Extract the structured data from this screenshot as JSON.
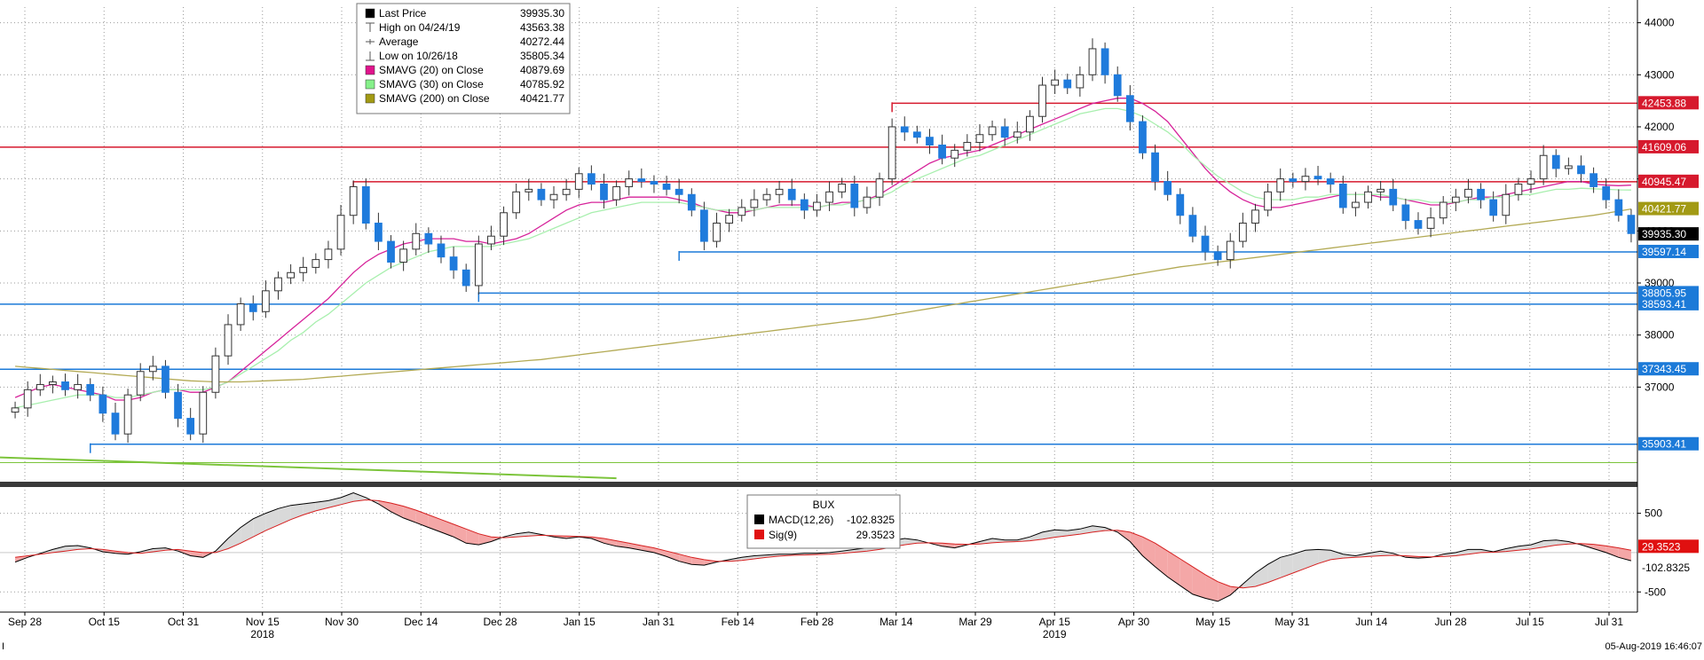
{
  "chart_data": [
    {
      "type": "candlestick",
      "panel": "price",
      "y_axis": {
        "ticks": [
          37000,
          38000,
          39000,
          40000,
          41000,
          42000,
          43000,
          44000
        ],
        "range": [
          35200,
          44300
        ],
        "side": "right"
      },
      "x_axis": {
        "ticks": [
          "Sep 28",
          "Oct 15",
          "Oct 31",
          "Nov 15",
          "Nov 30",
          "Dec 14",
          "Dec 28",
          "Jan 15",
          "Jan 31",
          "Feb 14",
          "Feb 28",
          "Mar 14",
          "Mar 29",
          "Apr 15",
          "Apr 30",
          "May 15",
          "May 31",
          "Jun 14",
          "Jun 28",
          "Jul 15",
          "Jul 31"
        ],
        "years": [
          {
            "label": "2018",
            "at": "Nov 15"
          },
          {
            "label": "2019",
            "at": "Apr 15"
          }
        ]
      },
      "grid": true,
      "legend": {
        "placement": "top-left",
        "entries": [
          {
            "label": "Last Price",
            "value": "39935.30",
            "color": "#000000",
            "marker": "square"
          },
          {
            "label": "High on 04/24/19",
            "value": "43563.38",
            "marker": "high"
          },
          {
            "label": "Average",
            "value": "40272.44",
            "marker": "avg"
          },
          {
            "label": "Low on 10/26/18",
            "value": "35805.34",
            "marker": "low"
          },
          {
            "label": "SMAVG (20)  on Close",
            "value": "40879.69",
            "color": "#e0148c",
            "marker": "square"
          },
          {
            "label": "SMAVG (30)  on Close",
            "value": "40785.92",
            "color": "#86f08a",
            "marker": "square"
          },
          {
            "label": "SMAVG (200)  on Close",
            "value": "40421.77",
            "color": "#a29a14",
            "marker": "square"
          }
        ]
      },
      "close_series": [
        36600,
        36950,
        37050,
        37100,
        36950,
        37050,
        36850,
        36500,
        36100,
        36850,
        37300,
        37400,
        36900,
        36400,
        36100,
        36900,
        37600,
        38200,
        38600,
        38450,
        38850,
        39100,
        39200,
        39300,
        39450,
        39650,
        40300,
        40850,
        40150,
        39800,
        39400,
        39650,
        39950,
        39750,
        39500,
        39250,
        38950,
        39750,
        39900,
        40350,
        40750,
        40800,
        40600,
        40700,
        40800,
        41100,
        40900,
        40600,
        40850,
        41000,
        40950,
        40900,
        40800,
        40700,
        40400,
        39800,
        40150,
        40300,
        40450,
        40600,
        40700,
        40800,
        40600,
        40400,
        40550,
        40750,
        40900,
        40450,
        40650,
        41000,
        42000,
        41900,
        41800,
        41650,
        41400,
        41550,
        41700,
        41850,
        42000,
        41800,
        41900,
        42200,
        42800,
        42900,
        42750,
        43000,
        43500,
        43000,
        42600,
        42100,
        41500,
        40950,
        40700,
        40300,
        39900,
        39600,
        39450,
        39800,
        40150,
        40400,
        40750,
        41000,
        40950,
        41050,
        41000,
        40900,
        40450,
        40550,
        40750,
        40800,
        40500,
        40200,
        40050,
        40250,
        40550,
        40650,
        40800,
        40600,
        40300,
        40700,
        40900,
        41000,
        41450,
        41200,
        41250,
        41100,
        40850,
        40600,
        40300,
        39950
      ],
      "moving_averages": [
        {
          "name": "SMAVG (20)",
          "color": "#d6239a",
          "values": [
            36800,
            36900,
            37000,
            37050,
            37000,
            36950,
            36900,
            36850,
            36750,
            36750,
            36800,
            36900,
            36950,
            36950,
            36900,
            36900,
            37000,
            37100,
            37300,
            37500,
            37700,
            37900,
            38100,
            38300,
            38500,
            38700,
            38950,
            39200,
            39400,
            39550,
            39650,
            39750,
            39800,
            39850,
            39850,
            39850,
            39800,
            39800,
            39750,
            39800,
            39850,
            39950,
            40100,
            40250,
            40400,
            40500,
            40550,
            40550,
            40600,
            40650,
            40650,
            40650,
            40650,
            40600,
            40550,
            40450,
            40400,
            40350,
            40350,
            40400,
            40450,
            40500,
            40500,
            40500,
            40450,
            40500,
            40550,
            40550,
            40600,
            40700,
            40850,
            41000,
            41150,
            41300,
            41400,
            41450,
            41500,
            41550,
            41650,
            41750,
            41850,
            41950,
            42050,
            42150,
            42250,
            42350,
            42450,
            42500,
            42550,
            42550,
            42450,
            42300,
            42100,
            41800,
            41500,
            41200,
            40950,
            40750,
            40600,
            40500,
            40450,
            40450,
            40500,
            40550,
            40600,
            40650,
            40700,
            40700,
            40700,
            40650,
            40650,
            40600,
            40550,
            40500,
            40500,
            40550,
            40600,
            40650,
            40650,
            40700,
            40750,
            40800,
            40850,
            40900,
            40950,
            40950,
            40900,
            40880,
            40870,
            40880
          ]
        },
        {
          "name": "SMAVG (30)",
          "color": "#a8efae",
          "values": [
            36600,
            36650,
            36700,
            36750,
            36800,
            36850,
            36850,
            36850,
            36800,
            36800,
            36850,
            36900,
            36950,
            36950,
            36950,
            36950,
            37000,
            37100,
            37250,
            37400,
            37550,
            37700,
            37900,
            38050,
            38250,
            38400,
            38600,
            38800,
            39000,
            39150,
            39300,
            39400,
            39500,
            39600,
            39650,
            39700,
            39700,
            39700,
            39700,
            39750,
            39800,
            39850,
            39950,
            40050,
            40150,
            40250,
            40350,
            40400,
            40450,
            40500,
            40550,
            40550,
            40550,
            40550,
            40500,
            40450,
            40400,
            40400,
            40400,
            40400,
            40450,
            40450,
            40450,
            40450,
            40450,
            40500,
            40500,
            40550,
            40600,
            40650,
            40750,
            40900,
            41000,
            41100,
            41200,
            41300,
            41400,
            41450,
            41550,
            41650,
            41750,
            41850,
            41950,
            42050,
            42150,
            42250,
            42300,
            42350,
            42350,
            42300,
            42200,
            42050,
            41900,
            41700,
            41450,
            41250,
            41050,
            40900,
            40750,
            40650,
            40600,
            40600,
            40600,
            40650,
            40650,
            40700,
            40700,
            40700,
            40700,
            40700,
            40650,
            40600,
            40600,
            40550,
            40550,
            40550,
            40600,
            40600,
            40650,
            40650,
            40700,
            40700,
            40750,
            40800,
            40800,
            40820,
            40810,
            40800,
            40790,
            40786
          ]
        },
        {
          "name": "SMAVG (200)",
          "color": "#b3aa55",
          "values": [
            37400,
            37380,
            37360,
            37340,
            37320,
            37300,
            37280,
            37260,
            37240,
            37220,
            37200,
            37180,
            37160,
            37140,
            37120,
            37110,
            37100,
            37100,
            37100,
            37110,
            37120,
            37130,
            37140,
            37150,
            37170,
            37190,
            37210,
            37230,
            37250,
            37270,
            37290,
            37310,
            37330,
            37350,
            37370,
            37390,
            37410,
            37430,
            37450,
            37470,
            37490,
            37510,
            37530,
            37560,
            37590,
            37620,
            37650,
            37680,
            37710,
            37740,
            37770,
            37800,
            37830,
            37860,
            37890,
            37920,
            37950,
            37980,
            38010,
            38040,
            38070,
            38100,
            38130,
            38160,
            38190,
            38220,
            38250,
            38280,
            38310,
            38350,
            38390,
            38430,
            38470,
            38510,
            38550,
            38590,
            38630,
            38670,
            38710,
            38750,
            38790,
            38830,
            38870,
            38910,
            38950,
            38990,
            39030,
            39070,
            39110,
            39150,
            39190,
            39230,
            39270,
            39310,
            39340,
            39370,
            39400,
            39430,
            39460,
            39490,
            39520,
            39550,
            39580,
            39610,
            39640,
            39670,
            39700,
            39730,
            39760,
            39790,
            39820,
            39850,
            39880,
            39910,
            39940,
            39970,
            40000,
            40030,
            40060,
            40090,
            40120,
            40150,
            40180,
            40210,
            40240,
            40270,
            40300,
            40340,
            40380,
            40421.77
          ]
        }
      ],
      "horizontal_levels": [
        {
          "value": 42453.88,
          "label": "42453.88",
          "color": "#d6192d",
          "from_index": 70
        },
        {
          "value": 41609.06,
          "label": "41609.06",
          "color": "#d6192d",
          "from_index": 0
        },
        {
          "value": 40945.47,
          "label": "40945.47",
          "color": "#d6192d",
          "from_index": 27
        },
        {
          "value": 40421.77,
          "label": "40421.77",
          "color": "#a29a14",
          "from_index": null
        },
        {
          "value": 39935.3,
          "label": "39935.30",
          "color": "#000000",
          "from_index": null
        },
        {
          "value": 39597.14,
          "label": "39597.14",
          "color": "#1c7ad8",
          "from_index": 53
        },
        {
          "value": 38805.95,
          "label": "38805.95",
          "color": "#1c7ad8",
          "from_index": 37
        },
        {
          "value": 38593.41,
          "label": "38593.41",
          "color": "#1c7ad8",
          "from_index": 0
        },
        {
          "value": 37343.45,
          "label": "37343.45",
          "color": "#1c7ad8",
          "from_index": 0
        },
        {
          "value": 35903.41,
          "label": "35903.41",
          "color": "#1c7ad8",
          "from_index": 6
        }
      ],
      "trend_line": {
        "color": "#7cc43b",
        "start": 35650,
        "end_index": 48,
        "end": 35250
      },
      "green_level": {
        "value": 35550,
        "color": "#7cc43b"
      }
    },
    {
      "type": "line",
      "panel": "macd",
      "title": "BUX",
      "y_axis": {
        "ticks": [
          500,
          -500
        ],
        "range": [
          -700,
          800
        ],
        "side": "right"
      },
      "legend": {
        "entries": [
          {
            "label": "MACD(12,26)",
            "value": "-102.8325",
            "color": "#000000"
          },
          {
            "label": "Sig(9)",
            "value": "29.3523",
            "color": "#e01010"
          }
        ]
      },
      "series": [
        {
          "name": "MACD(12,26)",
          "color": "#000000",
          "values": [
            -120,
            -60,
            -10,
            40,
            80,
            90,
            60,
            10,
            -10,
            -20,
            10,
            50,
            60,
            20,
            -40,
            -60,
            20,
            180,
            320,
            430,
            500,
            560,
            600,
            620,
            640,
            660,
            700,
            760,
            700,
            620,
            520,
            440,
            380,
            320,
            260,
            200,
            120,
            100,
            140,
            200,
            240,
            260,
            230,
            200,
            180,
            200,
            180,
            120,
            80,
            60,
            30,
            0,
            -50,
            -110,
            -150,
            -160,
            -120,
            -90,
            -60,
            -40,
            -30,
            -20,
            -20,
            -10,
            -10,
            0,
            20,
            40,
            60,
            90,
            150,
            180,
            160,
            120,
            80,
            60,
            100,
            140,
            180,
            160,
            160,
            200,
            260,
            290,
            280,
            300,
            340,
            320,
            260,
            140,
            -40,
            -180,
            -310,
            -420,
            -530,
            -580,
            -620,
            -540,
            -400,
            -260,
            -150,
            -60,
            -20,
            30,
            40,
            30,
            -20,
            -40,
            -10,
            20,
            -10,
            -60,
            -70,
            -60,
            -20,
            0,
            40,
            40,
            10,
            50,
            80,
            100,
            150,
            160,
            140,
            100,
            50,
            0,
            -60,
            -102.8325
          ]
        },
        {
          "name": "Sig(9)",
          "color": "#d62020",
          "values": [
            -60,
            -40,
            -20,
            0,
            20,
            40,
            50,
            40,
            20,
            0,
            -10,
            10,
            30,
            40,
            20,
            0,
            0,
            50,
            120,
            200,
            280,
            350,
            420,
            480,
            530,
            570,
            610,
            650,
            670,
            660,
            630,
            590,
            540,
            480,
            420,
            360,
            300,
            240,
            200,
            190,
            200,
            210,
            220,
            215,
            210,
            205,
            200,
            180,
            150,
            120,
            90,
            60,
            20,
            -20,
            -60,
            -90,
            -110,
            -110,
            -100,
            -80,
            -60,
            -45,
            -35,
            -30,
            -25,
            -20,
            -10,
            5,
            20,
            40,
            70,
            100,
            120,
            125,
            120,
            110,
            105,
            110,
            125,
            135,
            140,
            150,
            170,
            195,
            215,
            235,
            260,
            280,
            285,
            260,
            200,
            120,
            20,
            -80,
            -180,
            -280,
            -370,
            -430,
            -450,
            -430,
            -380,
            -320,
            -260,
            -200,
            -140,
            -90,
            -70,
            -60,
            -50,
            -40,
            -35,
            -40,
            -50,
            -55,
            -50,
            -40,
            -20,
            0,
            5,
            15,
            30,
            45,
            70,
            95,
            110,
            115,
            105,
            85,
            60,
            29.3523
          ]
        }
      ],
      "value_labels": [
        {
          "label": "29.3523",
          "value": 29.3523,
          "color": "#e01010",
          "text_color": "#ffffff"
        },
        {
          "label": "-102.8325",
          "value": -102.8325,
          "color": "#ffffff",
          "text_color": "#000000"
        }
      ]
    }
  ],
  "footer": {
    "left": "I",
    "timestamp": "05-Aug-2019 16:46:07"
  }
}
